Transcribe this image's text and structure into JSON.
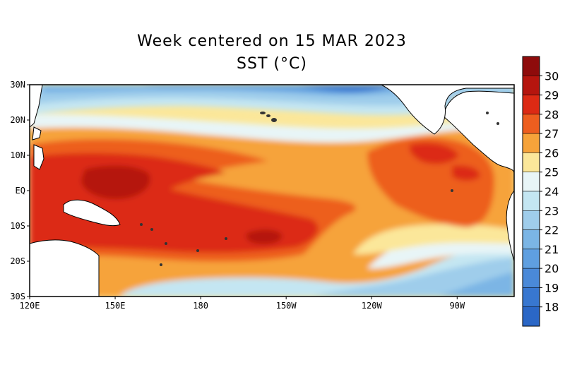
{
  "figure": {
    "title": "Week centered on 15 MAR 2023",
    "subtitle": "SST (°C)"
  },
  "map": {
    "lon_labels": [
      "120E",
      "150E",
      "180",
      "150W",
      "120W",
      "90W"
    ],
    "lat_labels": [
      "30N",
      "20N",
      "10N",
      "EQ",
      "10S",
      "20S",
      "30S"
    ],
    "lon_values": [
      120,
      150,
      180,
      210,
      240,
      270
    ],
    "lat_values": [
      30,
      20,
      10,
      0,
      -10,
      -20,
      -30
    ],
    "lon_range": [
      120,
      290
    ],
    "lat_range": [
      -30,
      30
    ]
  },
  "colorbar": {
    "ticks": [
      "30",
      "29",
      "28",
      "27",
      "26",
      "25",
      "24",
      "23",
      "22",
      "21",
      "20",
      "19",
      "18"
    ],
    "colors": [
      "#b5150e",
      "#dc2a14",
      "#ed5e1f",
      "#f6a33a",
      "#fbe79a",
      "#e8f5f7",
      "#c4e6f2",
      "#9fcdeb",
      "#7bb5e5",
      "#5f9fe0",
      "#4a89d8",
      "#3877d0",
      "#2b67c6"
    ],
    "top_color": "#8e0b0b"
  }
}
